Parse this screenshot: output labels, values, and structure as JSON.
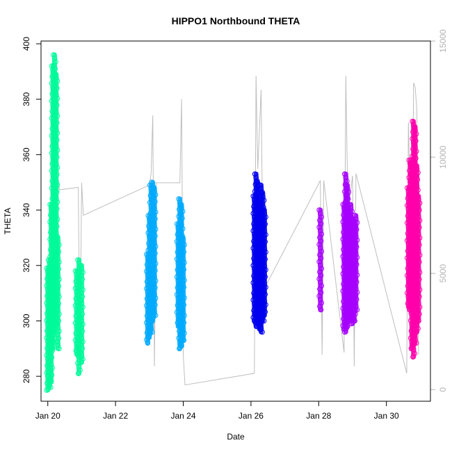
{
  "chart_data": {
    "type": "scatter",
    "title": "HIPPO1 Northbound THETA",
    "xlabel": "Date",
    "ylabel": "THETA",
    "xlim": [
      "Jan 19.8",
      "Jan 31.3"
    ],
    "ylim": [
      271,
      401
    ],
    "y2lim": [
      -500,
      15000
    ],
    "x_ticks": [
      "Jan 20",
      "Jan 22",
      "Jan 24",
      "Jan 26",
      "Jan 28",
      "Jan 30"
    ],
    "y_ticks": [
      280,
      300,
      320,
      340,
      360,
      380,
      400
    ],
    "y2_ticks": [
      0,
      5000,
      10000,
      15000
    ],
    "grid": false,
    "legend": "none",
    "series": [
      {
        "color": "#00FA9A",
        "segments": [
          {
            "x": 20.0,
            "ymin": 275,
            "ymax": 319
          },
          {
            "x": 20.05,
            "ymin": 276,
            "ymax": 322
          },
          {
            "x": 20.1,
            "ymin": 278,
            "ymax": 342
          },
          {
            "x": 20.15,
            "ymin": 290,
            "ymax": 392
          },
          {
            "x": 20.2,
            "ymin": 296,
            "ymax": 396
          },
          {
            "x": 20.25,
            "ymin": 298,
            "ymax": 389
          },
          {
            "x": 20.3,
            "ymin": 290,
            "ymax": 330
          },
          {
            "x": 20.85,
            "ymin": 288,
            "ymax": 318
          },
          {
            "x": 20.92,
            "ymin": 281,
            "ymax": 322
          },
          {
            "x": 21.0,
            "ymin": 285,
            "ymax": 320
          }
        ]
      },
      {
        "color": "#00AAFF",
        "segments": [
          {
            "x": 22.95,
            "ymin": 292,
            "ymax": 324
          },
          {
            "x": 23.0,
            "ymin": 294,
            "ymax": 338
          },
          {
            "x": 23.05,
            "ymin": 296,
            "ymax": 349
          },
          {
            "x": 23.1,
            "ymin": 300,
            "ymax": 350
          },
          {
            "x": 23.15,
            "ymin": 302,
            "ymax": 348
          },
          {
            "x": 23.85,
            "ymin": 298,
            "ymax": 335
          },
          {
            "x": 23.9,
            "ymin": 290,
            "ymax": 344
          },
          {
            "x": 23.95,
            "ymin": 291,
            "ymax": 342
          },
          {
            "x": 24.0,
            "ymin": 293,
            "ymax": 330
          }
        ]
      },
      {
        "color": "#0000EE",
        "segments": [
          {
            "x": 26.1,
            "ymin": 300,
            "ymax": 345
          },
          {
            "x": 26.15,
            "ymin": 298,
            "ymax": 353
          },
          {
            "x": 26.2,
            "ymin": 299,
            "ymax": 350
          },
          {
            "x": 26.25,
            "ymin": 297,
            "ymax": 343
          },
          {
            "x": 26.3,
            "ymin": 296,
            "ymax": 349
          },
          {
            "x": 26.35,
            "ymin": 300,
            "ymax": 346
          },
          {
            "x": 26.4,
            "ymin": 302,
            "ymax": 340
          }
        ]
      },
      {
        "color": "#A600FF",
        "segments": [
          {
            "x": 28.05,
            "ymin": 304,
            "ymax": 340
          },
          {
            "x": 28.75,
            "ymin": 297,
            "ymax": 342
          },
          {
            "x": 28.8,
            "ymin": 296,
            "ymax": 353
          },
          {
            "x": 28.85,
            "ymin": 298,
            "ymax": 349
          },
          {
            "x": 28.9,
            "ymin": 300,
            "ymax": 340
          },
          {
            "x": 28.95,
            "ymin": 301,
            "ymax": 342
          },
          {
            "x": 29.0,
            "ymin": 299,
            "ymax": 337
          },
          {
            "x": 29.05,
            "ymin": 300,
            "ymax": 336
          },
          {
            "x": 29.1,
            "ymin": 304,
            "ymax": 338
          }
        ]
      },
      {
        "color": "#FF00AA",
        "segments": [
          {
            "x": 30.65,
            "ymin": 305,
            "ymax": 348
          },
          {
            "x": 30.7,
            "ymin": 304,
            "ymax": 358
          },
          {
            "x": 30.75,
            "ymin": 290,
            "ymax": 357
          },
          {
            "x": 30.8,
            "ymin": 287,
            "ymax": 372
          },
          {
            "x": 30.85,
            "ymin": 292,
            "ymax": 370
          },
          {
            "x": 30.9,
            "ymin": 296,
            "ymax": 356
          },
          {
            "x": 30.95,
            "ymin": 300,
            "ymax": 345
          }
        ]
      }
    ],
    "altitude_series": {
      "axis": "right",
      "color": "#BEBEBE",
      "x": [
        20.0,
        20.1,
        20.15,
        20.2,
        20.25,
        20.3,
        20.35,
        20.9,
        20.95,
        21.0,
        21.05,
        23.0,
        23.05,
        23.1,
        23.15,
        23.2,
        23.9,
        23.95,
        24.0,
        24.05,
        26.1,
        26.15,
        26.2,
        26.3,
        26.35,
        26.4,
        26.45,
        28.05,
        28.1,
        28.15,
        28.75,
        28.8,
        28.85,
        28.9,
        29.0,
        29.05,
        29.1,
        30.6,
        30.65,
        30.7,
        30.75,
        30.8,
        30.85,
        30.9,
        30.95
      ],
      "y": [
        100,
        3200,
        8200,
        2000,
        8600,
        9000,
        8600,
        8700,
        1200,
        8900,
        7500,
        8800,
        9300,
        11800,
        1000,
        8900,
        8900,
        12500,
        1500,
        200,
        700,
        13500,
        9500,
        12900,
        5800,
        4000,
        4500,
        9000,
        1500,
        9000,
        1600,
        13500,
        9000,
        8000,
        9200,
        1000,
        9300,
        700,
        11500,
        8400,
        1500,
        13200,
        13000,
        12000,
        1500
      ]
    }
  }
}
